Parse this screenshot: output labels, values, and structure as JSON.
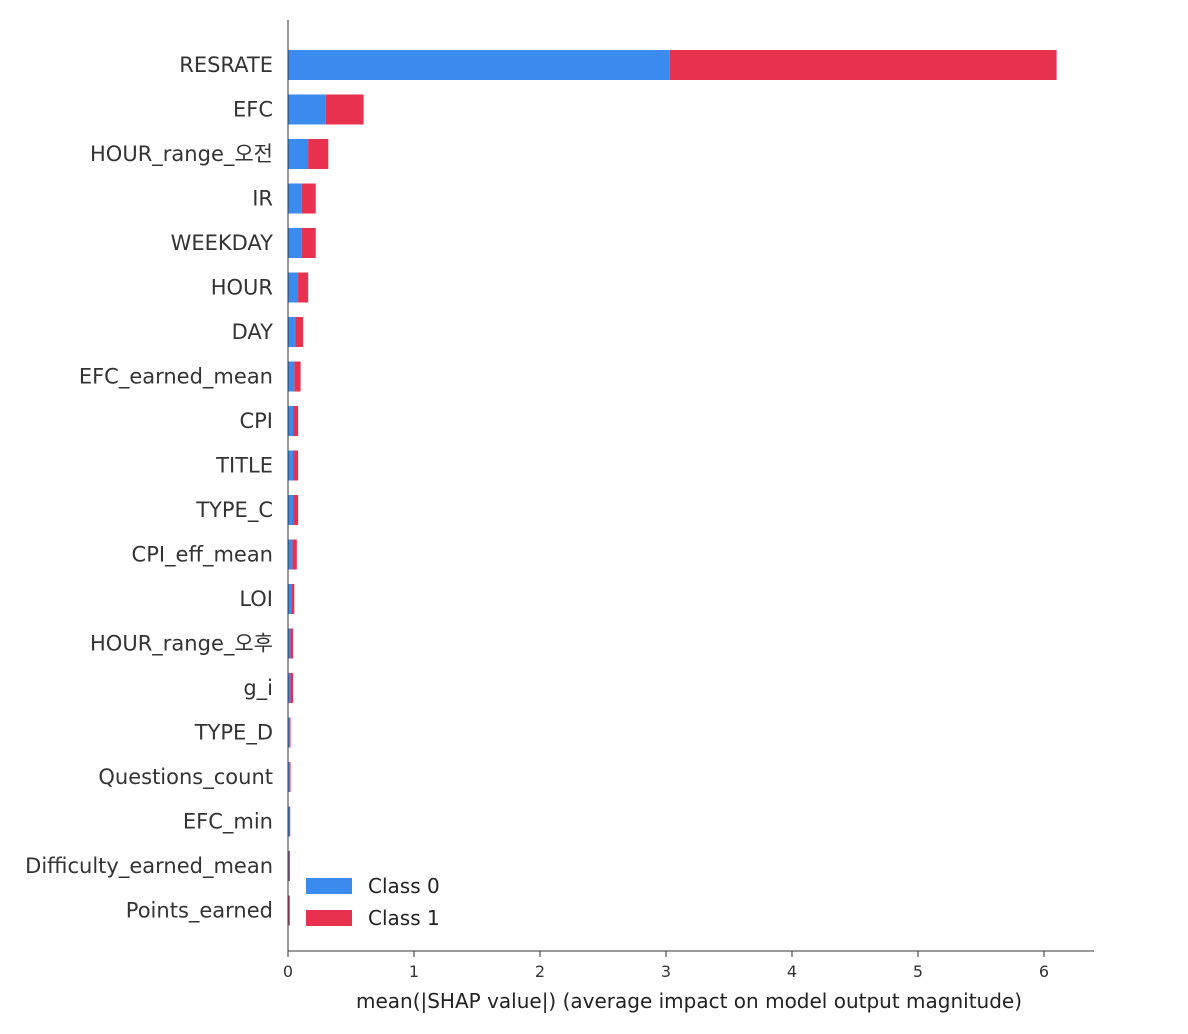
{
  "chart_data": {
    "type": "bar",
    "orientation": "horizontal",
    "stacked": true,
    "title": "",
    "xlabel": "mean(|SHAP value|) (average impact on model output magnitude)",
    "ylabel": "",
    "xlim": [
      0,
      6.4
    ],
    "xticks": [
      "0",
      "1",
      "2",
      "3",
      "4",
      "5",
      "6"
    ],
    "grid": false,
    "legend_position": "bottom-left",
    "categories": [
      "RESRATE",
      "EFC",
      "HOUR_range_오전",
      "IR",
      "WEEKDAY",
      "HOUR",
      "DAY",
      "EFC_earned_mean",
      "CPI",
      "TITLE",
      "TYPE_C",
      "CPI_eff_mean",
      "LOI",
      "HOUR_range_오후",
      "g_i",
      "TYPE_D",
      "Questions_count",
      "EFC_min",
      "Difficulty_earned_mean",
      "Points_earned"
    ],
    "series": [
      {
        "name": "Class 0",
        "color": "#3b8aee",
        "values": [
          3.03,
          0.3,
          0.16,
          0.11,
          0.11,
          0.08,
          0.06,
          0.05,
          0.04,
          0.04,
          0.04,
          0.035,
          0.025,
          0.02,
          0.02,
          0.01,
          0.01,
          0.008,
          0.006,
          0.005
        ]
      },
      {
        "name": "Class 1",
        "color": "#e8304f",
        "values": [
          3.07,
          0.3,
          0.16,
          0.11,
          0.11,
          0.08,
          0.06,
          0.05,
          0.04,
          0.04,
          0.04,
          0.035,
          0.025,
          0.02,
          0.02,
          0.01,
          0.01,
          0.004,
          0.003,
          0.003
        ]
      }
    ]
  }
}
